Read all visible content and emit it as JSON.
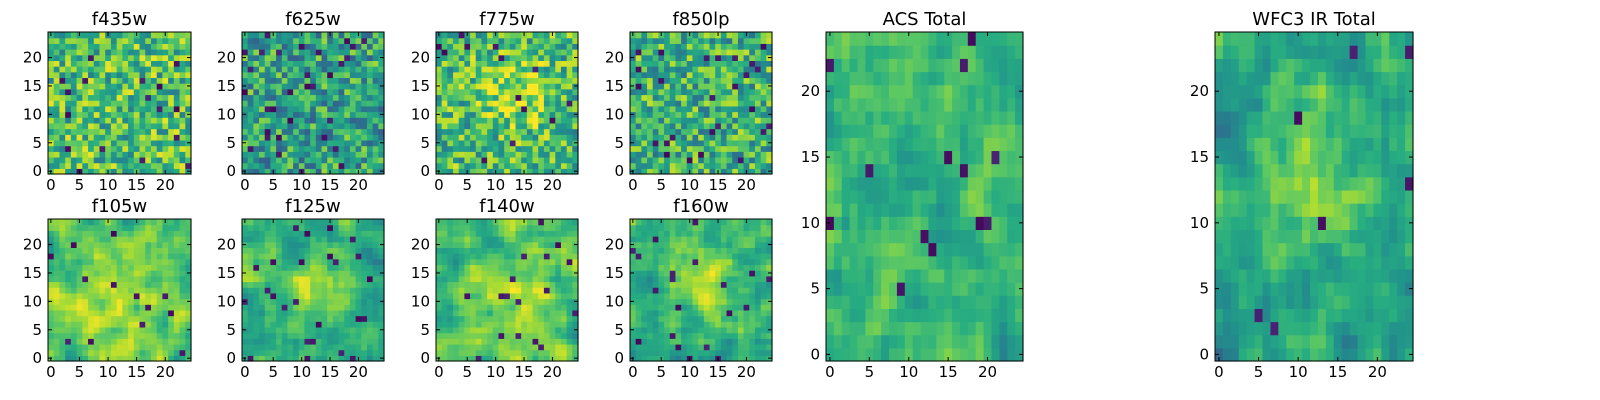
{
  "chart_data": [
    {
      "type": "heatmap",
      "title": "f435w",
      "xlabel": "",
      "ylabel": "",
      "x_ticks": [
        0,
        5,
        10,
        15,
        20
      ],
      "y_ticks": [
        0,
        5,
        10,
        15,
        20
      ],
      "xlim": [
        0,
        24
      ],
      "ylim": [
        0,
        24
      ],
      "grid": false,
      "colormap": "viridis",
      "cell_values": "visual noise (25x25 per-pixel flux values not individually legible)"
    },
    {
      "type": "heatmap",
      "title": "f625w",
      "xlabel": "",
      "ylabel": "",
      "x_ticks": [
        0,
        5,
        10,
        15,
        20
      ],
      "y_ticks": [
        0,
        5,
        10,
        15,
        20
      ],
      "xlim": [
        0,
        24
      ],
      "ylim": [
        0,
        24
      ],
      "grid": false,
      "colormap": "viridis"
    },
    {
      "type": "heatmap",
      "title": "f775w",
      "xlabel": "",
      "ylabel": "",
      "x_ticks": [
        0,
        5,
        10,
        15,
        20
      ],
      "y_ticks": [
        0,
        5,
        10,
        15,
        20
      ],
      "xlim": [
        0,
        24
      ],
      "ylim": [
        0,
        24
      ],
      "grid": false,
      "colormap": "viridis"
    },
    {
      "type": "heatmap",
      "title": "f850lp",
      "xlabel": "",
      "ylabel": "",
      "x_ticks": [
        0,
        5,
        10,
        15,
        20
      ],
      "y_ticks": [
        0,
        5,
        10,
        15,
        20
      ],
      "xlim": [
        0,
        24
      ],
      "ylim": [
        0,
        24
      ],
      "grid": false,
      "colormap": "viridis"
    },
    {
      "type": "heatmap",
      "title": "f105w",
      "xlabel": "",
      "ylabel": "",
      "x_ticks": [
        0,
        5,
        10,
        15,
        20
      ],
      "y_ticks": [
        0,
        5,
        10,
        15,
        20
      ],
      "xlim": [
        0,
        24
      ],
      "ylim": [
        0,
        24
      ],
      "grid": false,
      "colormap": "viridis"
    },
    {
      "type": "heatmap",
      "title": "f125w",
      "xlabel": "",
      "ylabel": "",
      "x_ticks": [
        0,
        5,
        10,
        15,
        20
      ],
      "y_ticks": [
        0,
        5,
        10,
        15,
        20
      ],
      "xlim": [
        0,
        24
      ],
      "ylim": [
        0,
        24
      ],
      "grid": false,
      "colormap": "viridis"
    },
    {
      "type": "heatmap",
      "title": "f140w",
      "xlabel": "",
      "ylabel": "",
      "x_ticks": [
        0,
        5,
        10,
        15,
        20
      ],
      "y_ticks": [
        0,
        5,
        10,
        15,
        20
      ],
      "xlim": [
        0,
        24
      ],
      "ylim": [
        0,
        24
      ],
      "grid": false,
      "colormap": "viridis"
    },
    {
      "type": "heatmap",
      "title": "f160w",
      "xlabel": "",
      "ylabel": "",
      "x_ticks": [
        0,
        5,
        10,
        15,
        20
      ],
      "y_ticks": [
        0,
        5,
        10,
        15,
        20
      ],
      "xlim": [
        0,
        24
      ],
      "ylim": [
        0,
        24
      ],
      "grid": false,
      "colormap": "viridis"
    },
    {
      "type": "heatmap",
      "title": "ACS Total",
      "xlabel": "",
      "ylabel": "",
      "x_ticks": [
        0,
        5,
        10,
        15,
        20
      ],
      "y_ticks": [
        0,
        5,
        10,
        15,
        20
      ],
      "xlim": [
        0,
        24
      ],
      "ylim": [
        0,
        24
      ],
      "grid": false,
      "colormap": "viridis"
    },
    {
      "type": "heatmap",
      "title": "WFC3 IR Total",
      "xlabel": "",
      "ylabel": "",
      "x_ticks": [
        0,
        5,
        10,
        15,
        20
      ],
      "y_ticks": [
        0,
        5,
        10,
        15,
        20
      ],
      "xlim": [
        0,
        24
      ],
      "ylim": [
        0,
        24
      ],
      "grid": false,
      "colormap": "viridis"
    }
  ]
}
